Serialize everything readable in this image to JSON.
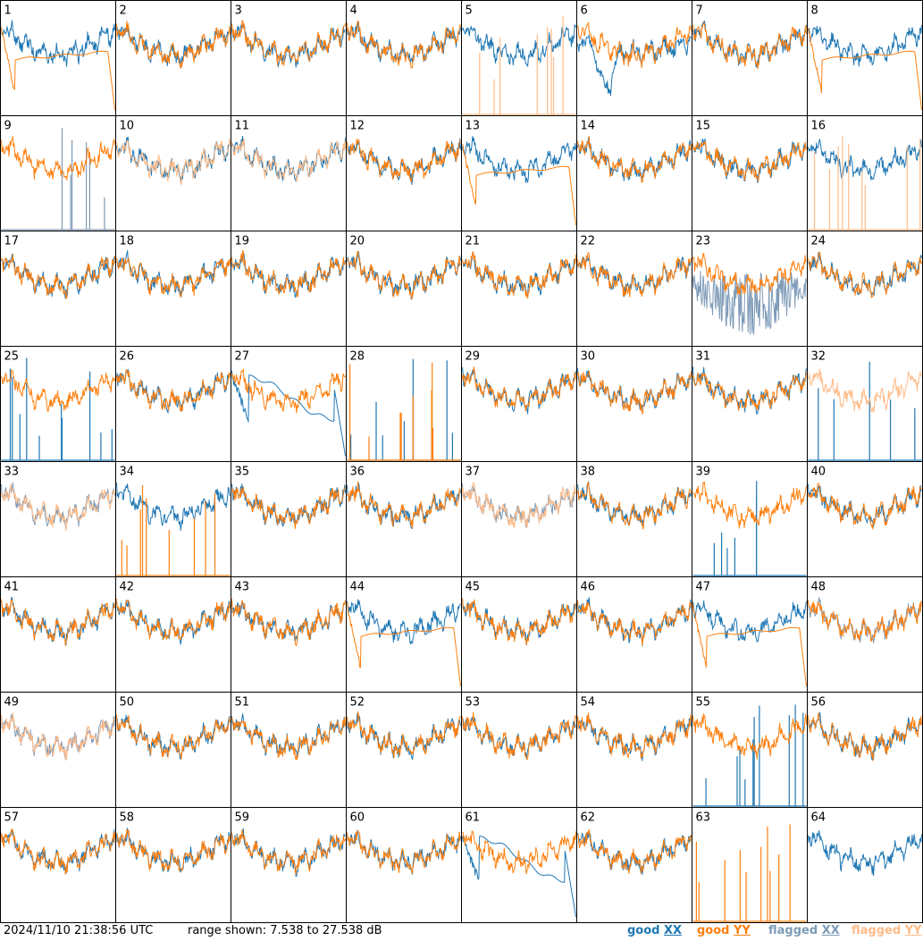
{
  "chart_data": {
    "type": "line",
    "title": "",
    "xlabel": "",
    "ylabel": "",
    "grid_layout": "8 columns x 8 rows of small multiples",
    "ylim": [
      7.538,
      27.538
    ],
    "ylim_unit": "dB",
    "panel_labels": [
      "1",
      "2",
      "3",
      "4",
      "5",
      "6",
      "7",
      "8",
      "9",
      "10",
      "11",
      "12",
      "13",
      "14",
      "15",
      "16",
      "17",
      "18",
      "19",
      "20",
      "21",
      "22",
      "23",
      "24",
      "25",
      "26",
      "27",
      "28",
      "29",
      "30",
      "31",
      "32",
      "33",
      "34",
      "35",
      "36",
      "37",
      "38",
      "39",
      "40",
      "41",
      "42",
      "43",
      "44",
      "45",
      "46",
      "47",
      "48",
      "49",
      "50",
      "51",
      "52",
      "53",
      "54",
      "55",
      "56",
      "57",
      "58",
      "59",
      "60",
      "61",
      "62",
      "63",
      "64"
    ],
    "series_legend": [
      {
        "name": "good XX",
        "color": "#1f77b4"
      },
      {
        "name": "good YY",
        "color": "#ff7f0e"
      },
      {
        "name": "flagged XX",
        "color": "#7f9bb8"
      },
      {
        "name": "flagged YY",
        "color": "#ffbb88"
      }
    ],
    "panel_profiles_note": "per-panel trace shapes are qualitative; values approximated from visual",
    "panels": [
      {
        "id": 1,
        "xx": "normal",
        "yy": "smooth_drop"
      },
      {
        "id": 2,
        "xx": "normal",
        "yy": "normal"
      },
      {
        "id": 3,
        "xx": "normal",
        "yy": "normal"
      },
      {
        "id": 4,
        "xx": "normal",
        "yy": "normal"
      },
      {
        "id": 5,
        "xx": "normal",
        "yy": "spikes_flagged"
      },
      {
        "id": 6,
        "xx": "deep_dip",
        "yy": "normal"
      },
      {
        "id": 7,
        "xx": "normal",
        "yy": "normal"
      },
      {
        "id": 8,
        "xx": "normal",
        "yy": "smooth_drop"
      },
      {
        "id": 9,
        "xx": "spikes_flagged",
        "yy": "normal"
      },
      {
        "id": 10,
        "xx": "normal",
        "yy": "flagged"
      },
      {
        "id": 11,
        "xx": "normal",
        "yy": "flagged"
      },
      {
        "id": 12,
        "xx": "normal",
        "yy": "normal"
      },
      {
        "id": 13,
        "xx": "normal",
        "yy": "smooth_drop"
      },
      {
        "id": 14,
        "xx": "normal",
        "yy": "normal"
      },
      {
        "id": 15,
        "xx": "normal",
        "yy": "normal"
      },
      {
        "id": 16,
        "xx": "normal",
        "yy": "spikes_flagged"
      },
      {
        "id": 17,
        "xx": "normal",
        "yy": "normal"
      },
      {
        "id": 18,
        "xx": "normal",
        "yy": "normal"
      },
      {
        "id": 19,
        "xx": "normal",
        "yy": "normal"
      },
      {
        "id": 20,
        "xx": "normal",
        "yy": "normal"
      },
      {
        "id": 21,
        "xx": "normal",
        "yy": "normal"
      },
      {
        "id": 22,
        "xx": "normal",
        "yy": "normal"
      },
      {
        "id": 23,
        "xx": "flagged_noisy",
        "yy": "normal"
      },
      {
        "id": 24,
        "xx": "normal",
        "yy": "normal"
      },
      {
        "id": 25,
        "xx": "spikes",
        "yy": "normal"
      },
      {
        "id": 26,
        "xx": "normal",
        "yy": "normal"
      },
      {
        "id": 27,
        "xx": "smooth_hump",
        "yy": "normal"
      },
      {
        "id": 28,
        "xx": "spikes",
        "yy": "spikes"
      },
      {
        "id": 29,
        "xx": "normal",
        "yy": "normal"
      },
      {
        "id": 30,
        "xx": "normal",
        "yy": "normal"
      },
      {
        "id": 31,
        "xx": "normal",
        "yy": "normal"
      },
      {
        "id": 32,
        "xx": "spikes",
        "yy": "flagged"
      },
      {
        "id": 33,
        "xx": "flagged",
        "yy": "flagged"
      },
      {
        "id": 34,
        "xx": "normal",
        "yy": "spikes"
      },
      {
        "id": 35,
        "xx": "normal",
        "yy": "normal"
      },
      {
        "id": 36,
        "xx": "normal",
        "yy": "normal"
      },
      {
        "id": 37,
        "xx": "flagged",
        "yy": "flagged"
      },
      {
        "id": 38,
        "xx": "normal",
        "yy": "normal"
      },
      {
        "id": 39,
        "xx": "spikes",
        "yy": "normal"
      },
      {
        "id": 40,
        "xx": "normal",
        "yy": "normal"
      },
      {
        "id": 41,
        "xx": "normal",
        "yy": "normal"
      },
      {
        "id": 42,
        "xx": "normal",
        "yy": "normal"
      },
      {
        "id": 43,
        "xx": "normal",
        "yy": "normal"
      },
      {
        "id": 44,
        "xx": "normal",
        "yy": "smooth_drop"
      },
      {
        "id": 45,
        "xx": "normal",
        "yy": "normal"
      },
      {
        "id": 46,
        "xx": "normal",
        "yy": "normal"
      },
      {
        "id": 47,
        "xx": "normal",
        "yy": "smooth_drop"
      },
      {
        "id": 48,
        "xx": "flagged",
        "yy": "normal"
      },
      {
        "id": 49,
        "xx": "flagged",
        "yy": "flagged"
      },
      {
        "id": 50,
        "xx": "normal",
        "yy": "normal"
      },
      {
        "id": 51,
        "xx": "normal",
        "yy": "normal"
      },
      {
        "id": 52,
        "xx": "normal",
        "yy": "normal"
      },
      {
        "id": 53,
        "xx": "normal",
        "yy": "normal"
      },
      {
        "id": 54,
        "xx": "normal",
        "yy": "normal"
      },
      {
        "id": 55,
        "xx": "spikes",
        "yy": "normal"
      },
      {
        "id": 56,
        "xx": "normal",
        "yy": "normal"
      },
      {
        "id": 57,
        "xx": "normal",
        "yy": "normal"
      },
      {
        "id": 58,
        "xx": "normal",
        "yy": "normal"
      },
      {
        "id": 59,
        "xx": "normal",
        "yy": "normal"
      },
      {
        "id": 60,
        "xx": "normal",
        "yy": "normal"
      },
      {
        "id": 61,
        "xx": "smooth_hump",
        "yy": "normal"
      },
      {
        "id": 62,
        "xx": "normal",
        "yy": "normal"
      },
      {
        "id": 63,
        "xx": "none",
        "yy": "spikes"
      },
      {
        "id": 64,
        "xx": "normal",
        "yy": "none"
      }
    ]
  },
  "footer": {
    "timestamp": "2024/11/10 21:38:56 UTC",
    "range_text": "range shown: 7.538 to 27.538 dB",
    "legend": [
      {
        "word": "good",
        "key": "XX"
      },
      {
        "word": "good",
        "key": "YY"
      },
      {
        "word": "flagged",
        "key": "XX"
      },
      {
        "word": "flagged",
        "key": "YY"
      }
    ]
  },
  "colors": {
    "good_xx": "#1f77b4",
    "good_yy": "#ff7f0e",
    "flagged_xx": "#7f9bb8",
    "flagged_yy": "#ffbb88",
    "border": "#000000",
    "background": "#ffffff"
  }
}
